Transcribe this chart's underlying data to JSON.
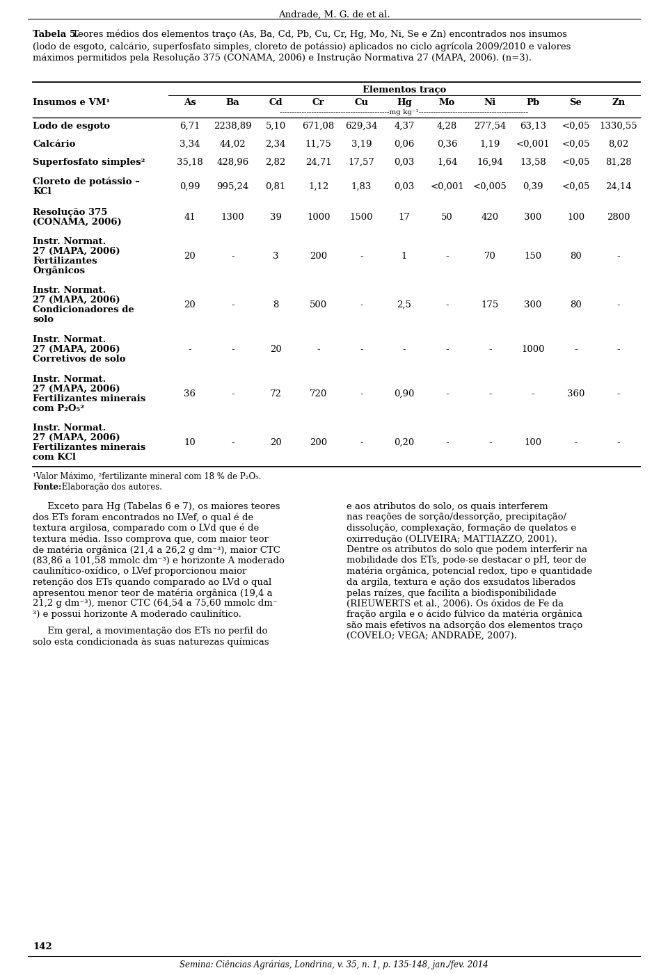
{
  "header_text": "Andrade, M. G. de et al.",
  "title_bold": "Tabela 5.",
  "title_line1_rest": " Teores médios dos elementos traço (As, Ba, Cd, Pb, Cu, Cr, Hg, Mo, Ni, Se e Zn) encontrados nos insumos",
  "title_line2": "(lodo de esgoto, calcário, superfosfato simples, cloreto de potássio) aplicados no ciclo agrícola 2009/2010 e valores",
  "title_line3": "máximos permitidos pela Resolução 375 (CONAMA, 2006) e Instrução Normativa 27 (MAPA, 2006). (n=3).",
  "col_header_main": "Elementos traço",
  "columns": [
    "As",
    "Ba",
    "Cd",
    "Cr",
    "Cu",
    "Hg",
    "Mo",
    "Ni",
    "Pb",
    "Se",
    "Zn"
  ],
  "rows": [
    {
      "label_lines": [
        "Lodo de esgoto"
      ],
      "values": [
        "6,71",
        "2238,89",
        "5,10",
        "671,08",
        "629,34",
        "4,37",
        "4,28",
        "277,54",
        "63,13",
        "<0,05",
        "1330,55"
      ]
    },
    {
      "label_lines": [
        "Calcário"
      ],
      "values": [
        "3,34",
        "44,02",
        "2,34",
        "11,75",
        "3,19",
        "0,06",
        "0,36",
        "1,19",
        "<0,001",
        "<0,05",
        "8,02"
      ]
    },
    {
      "label_lines": [
        "Superfosfato simples²"
      ],
      "values": [
        "35,18",
        "428,96",
        "2,82",
        "24,71",
        "17,57",
        "0,03",
        "1,64",
        "16,94",
        "13,58",
        "<0,05",
        "81,28"
      ]
    },
    {
      "label_lines": [
        "Cloreto de potássio –",
        "KCl"
      ],
      "values": [
        "0,99",
        "995,24",
        "0,81",
        "1,12",
        "1,83",
        "0,03",
        "<0,001",
        "<0,005",
        "0,39",
        "<0,05",
        "24,14"
      ]
    },
    {
      "label_lines": [
        "Resolução 375",
        "(CONAMA, 2006)"
      ],
      "values": [
        "41",
        "1300",
        "39",
        "1000",
        "1500",
        "17",
        "50",
        "420",
        "300",
        "100",
        "2800"
      ]
    },
    {
      "label_lines": [
        "Instr. Normat.",
        "27 (MAPA, 2006)",
        "Fertilizantes",
        "Orgânicos"
      ],
      "values": [
        "20",
        "-",
        "3",
        "200",
        "-",
        "1",
        "-",
        "70",
        "150",
        "80",
        "-"
      ]
    },
    {
      "label_lines": [
        "Instr. Normat.",
        "27 (MAPA, 2006)",
        "Condicionadores de",
        "solo"
      ],
      "values": [
        "20",
        "-",
        "8",
        "500",
        "-",
        "2,5",
        "-",
        "175",
        "300",
        "80",
        "-"
      ]
    },
    {
      "label_lines": [
        "Instr. Normat.",
        "27 (MAPA, 2006)",
        "Corretivos de solo"
      ],
      "values": [
        "-",
        "-",
        "20",
        "-",
        "-",
        "-",
        "-",
        "-",
        "1000",
        "-",
        "-"
      ]
    },
    {
      "label_lines": [
        "Instr. Normat.",
        "27 (MAPA, 2006)",
        "Fertilizantes minerais",
        "com P₂O₅²"
      ],
      "values": [
        "36",
        "-",
        "72",
        "720",
        "-",
        "0,90",
        "-",
        "-",
        "-",
        "360",
        "-"
      ]
    },
    {
      "label_lines": [
        "Instr. Normat.",
        "27 (MAPA, 2006)",
        "Fertilizantes minerais",
        "com KCl"
      ],
      "values": [
        "10",
        "-",
        "20",
        "200",
        "-",
        "0,20",
        "-",
        "-",
        "100",
        "-",
        "-"
      ]
    }
  ],
  "footnote1": "¹Valor Máximo, ²fertilizante mineral com 18 % de P₂O₅.",
  "footnote2_bold": "Fonte:",
  "footnote2_rest": " Elaboração dos autores.",
  "para1_left_lines": [
    "     Exceto para Hg (Tabelas 6 e 7), os maiores teores",
    "dos ETs foram encontrados no LVef, o qual é de",
    "textura argilosa, comparado com o LVd que é de",
    "textura média. Isso comprova que, com maior teor",
    "de matéria orgânica (21,4 a 26,2 g dm⁻³), maior CTC",
    "(83,86 a 101,58 mmolᴄ dm⁻³) e horizonte A moderado",
    "caulinítico-oxídico, o LVef proporcionou maior",
    "retenção dos ETs quando comparado ao LVd o qual",
    "apresentou menor teor de matéria orgânica (19,4 a",
    "21,2 g dm⁻³), menor CTC (64,54 a 75,60 mmolᴄ dm⁻",
    "³) e possui horizonte A moderado caulinítico."
  ],
  "para1_right_lines": [
    "e aos atributos do solo, os quais interferem",
    "nas reações de sorção/dessorção, precipitação/",
    "dissolução, complexação, formação de quelatos e",
    "oxirredução (OLIVEIRA; MATTIAZZO, 2001).",
    "Dentre os atributos do solo que podem interferir na",
    "mobilidade dos ETs, pode-se destacar o pH, teor de",
    "matéria orgânica, potencial redox, tipo e quantidade",
    "da argila, textura e ação dos exsudatos liberados",
    "pelas raízes, que facilita a biodisponibilidade",
    "(RIEUWERTS et al., 2006). Os óxidos de Fe da",
    "fração argila e o ácido fúlvico da matéria orgânica",
    "são mais efetivos na adsorção dos elementos traço",
    "(COVELO; VEGA; ANDRADE, 2007)."
  ],
  "para2_left_lines": [
    "     Em geral, a movimentação dos ETs no perfil do",
    "solo esta condicionada às suas naturezas químicas"
  ],
  "page_num": "142",
  "footer_text": "Semina: Ciências Agrárias, Londrina, v. 35, n. 1, p. 135-148, jan./fev. 2014"
}
